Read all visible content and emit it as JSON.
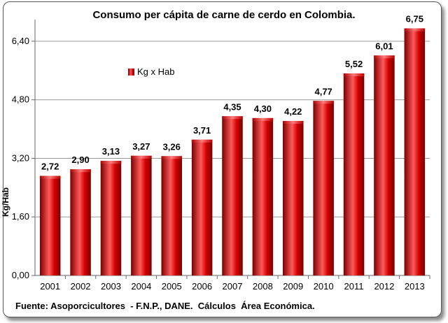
{
  "chart_data": {
    "type": "bar",
    "title": "Consumo per cápita de carne de cerdo en Colombia.",
    "ylabel": "Kg/Hab",
    "xlabel": "",
    "categories": [
      "2001",
      "2002",
      "2003",
      "2004",
      "2005",
      "2006",
      "2007",
      "2008",
      "2009",
      "2010",
      "2011",
      "2012",
      "2013"
    ],
    "series": [
      {
        "name": "Kg x Hab",
        "values": [
          2.72,
          2.9,
          3.13,
          3.27,
          3.26,
          3.71,
          4.35,
          4.3,
          4.22,
          4.77,
          5.52,
          6.01,
          6.75
        ],
        "data_labels": [
          "2,72",
          "2,90",
          "3,13",
          "3,27",
          "3,26",
          "3,71",
          "4,35",
          "4,30",
          "4,22",
          "4,77",
          "5,52",
          "6,01",
          "6,75"
        ]
      }
    ],
    "ylim": [
      0,
      6.8
    ],
    "yticks": [
      0,
      1.6,
      3.2,
      4.8,
      6.4
    ],
    "ytick_labels": [
      "0,00",
      "1,60",
      "3,20",
      "4,80",
      "6,40"
    ],
    "grid": true,
    "legend_position": "top-left",
    "colors": {
      "bar": "#d40000",
      "bar_dark": "#7a0000",
      "bar_light": "#ff5a5a",
      "grid": "#9a9a9a"
    }
  },
  "source_note": "Fuente: Asoporcicultores  - F.N.P., DANE.  Cálculos  Área Económica."
}
